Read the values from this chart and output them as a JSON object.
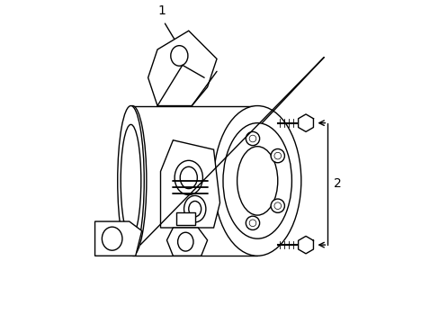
{
  "background_color": "#ffffff",
  "line_color": "#000000",
  "label_1_text": "1",
  "label_2_text": "2",
  "line_width": 1.0,
  "fig_width": 4.89,
  "fig_height": 3.6,
  "dpi": 100
}
